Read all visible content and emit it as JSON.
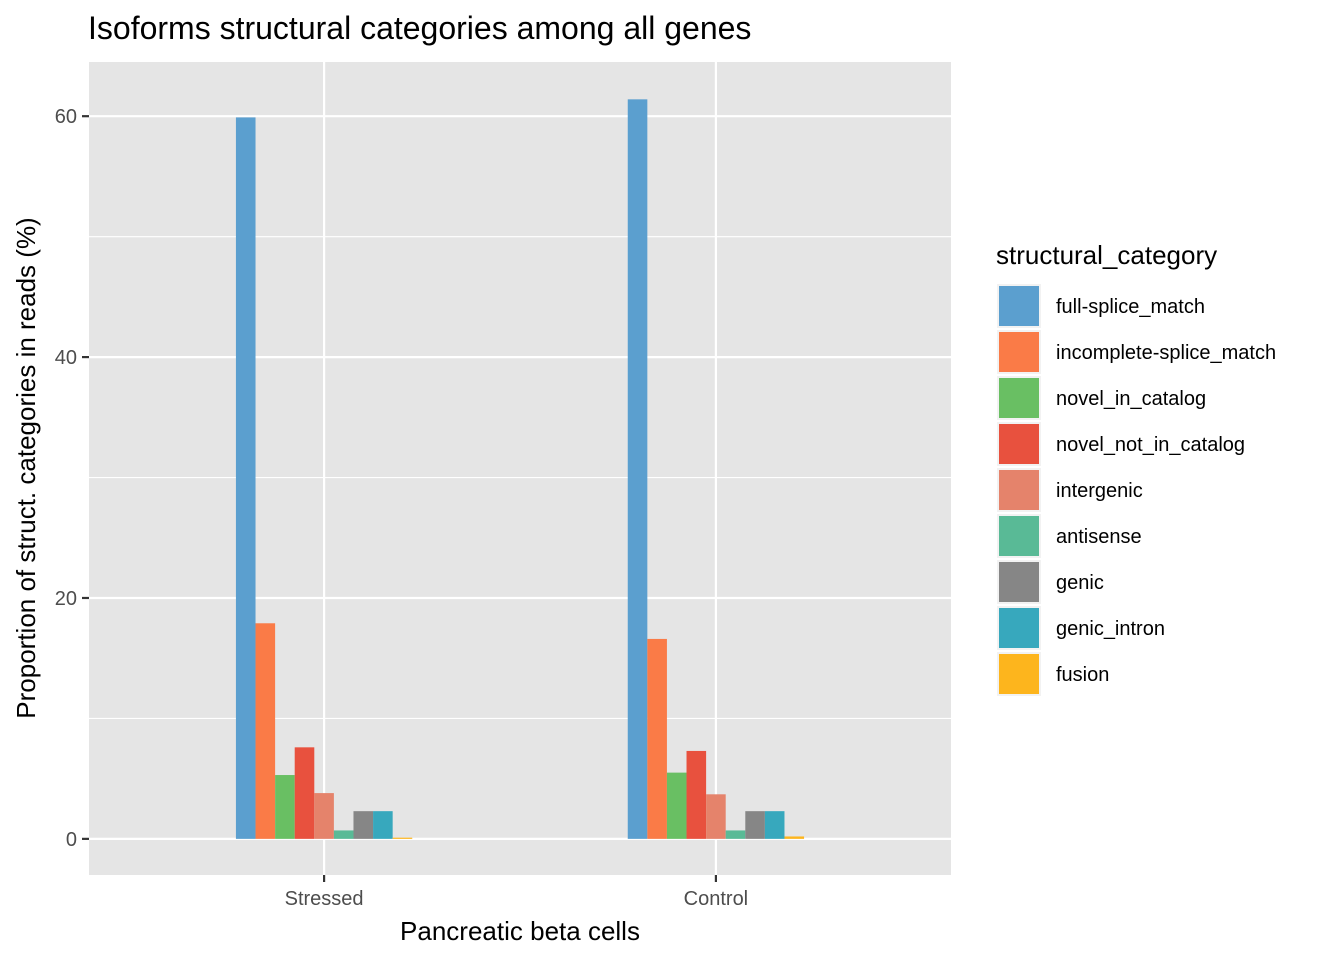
{
  "chart_data": {
    "type": "bar",
    "title": "Isoforms structural categories among all genes",
    "xlabel": "Pancreatic beta cells",
    "ylabel": "Proportion of struct. categories in reads (%)",
    "categories": [
      "Stressed",
      "Control"
    ],
    "ylim": [
      -3,
      64.5
    ],
    "yticks": [
      0,
      20,
      40,
      60
    ],
    "yminor": [
      10,
      30,
      50
    ],
    "grid": true,
    "legend": {
      "title": "structural_category",
      "position": "right"
    },
    "series": [
      {
        "name": "full-splice_match",
        "color": "#5B9FCF",
        "values": [
          59.9,
          61.4
        ]
      },
      {
        "name": "incomplete-splice_match",
        "color": "#FA7B47",
        "values": [
          17.9,
          16.6
        ]
      },
      {
        "name": "novel_in_catalog",
        "color": "#69BF63",
        "values": [
          5.3,
          5.5
        ]
      },
      {
        "name": "novel_not_in_catalog",
        "color": "#E8513E",
        "values": [
          7.6,
          7.3
        ]
      },
      {
        "name": "intergenic",
        "color": "#E5836B",
        "values": [
          3.8,
          3.7
        ]
      },
      {
        "name": "antisense",
        "color": "#59BA96",
        "values": [
          0.7,
          0.7
        ]
      },
      {
        "name": "genic",
        "color": "#868686",
        "values": [
          2.3,
          2.3
        ]
      },
      {
        "name": "genic_intron",
        "color": "#37A8BD",
        "values": [
          2.3,
          2.3
        ]
      },
      {
        "name": "fusion",
        "color": "#FDB51D",
        "values": [
          0.1,
          0.2
        ]
      }
    ]
  }
}
